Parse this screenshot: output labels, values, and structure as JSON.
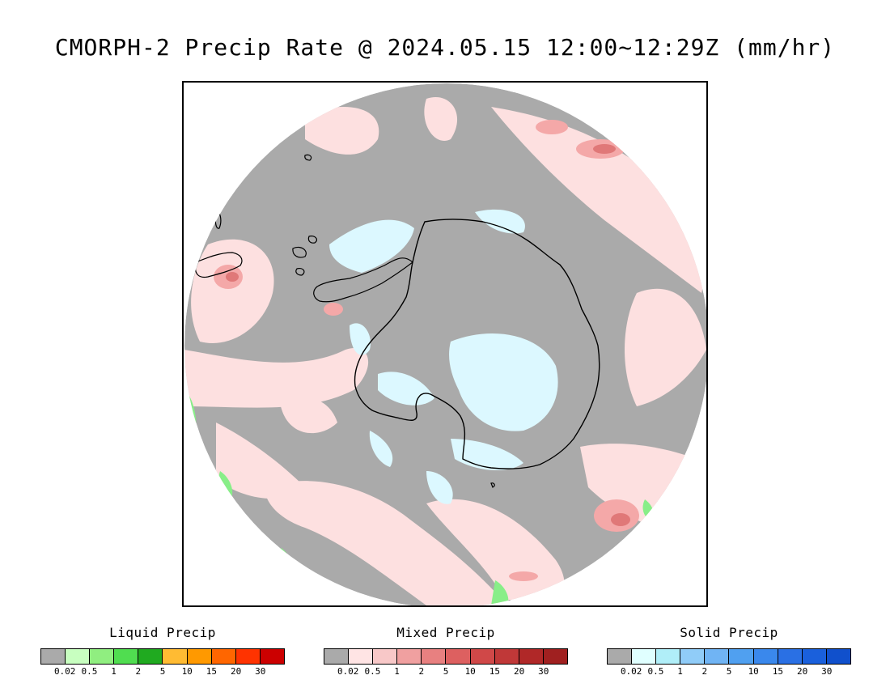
{
  "title": "CMORPH-2 Precip Rate @ 2024.05.15 12:00~12:29Z (mm/hr)",
  "map": {
    "projection": "south-polar-stereographic",
    "colors": {
      "background_circle": "#aaaaaa",
      "mixed_light": "#fde0e0",
      "mixed_mid": "#f4a8a8",
      "mixed_strong": "#e07878",
      "solid_light": "#dcf8ff",
      "liquid_light": "#88ee88",
      "coast": "#000000"
    }
  },
  "legends": [
    {
      "title": "Liquid Precip",
      "colors": [
        "#aaaaaa",
        "#c8ffc0",
        "#90ee80",
        "#50dd50",
        "#20aa20",
        "#ffbb33",
        "#ff9900",
        "#ff6600",
        "#ff3300",
        "#cc0000"
      ],
      "ticks": [
        "0.02",
        "0.5",
        "1",
        "2",
        "5",
        "10",
        "15",
        "20",
        "30"
      ]
    },
    {
      "title": "Mixed Precip",
      "colors": [
        "#aaaaaa",
        "#ffe4e4",
        "#f8c8c8",
        "#f0a0a0",
        "#e88080",
        "#dd6060",
        "#d04848",
        "#c03838",
        "#b02828",
        "#a02020"
      ],
      "ticks": [
        "0.02",
        "0.5",
        "1",
        "2",
        "5",
        "10",
        "15",
        "20",
        "30"
      ]
    },
    {
      "title": "Solid Precip",
      "colors": [
        "#aaaaaa",
        "#e0ffff",
        "#b0eef8",
        "#90ccf8",
        "#70b4f4",
        "#50a0f0",
        "#3a88ec",
        "#2a70e4",
        "#1a60dc",
        "#1050cc"
      ],
      "ticks": [
        "0.02",
        "0.5",
        "1",
        "2",
        "5",
        "10",
        "15",
        "20",
        "30"
      ]
    }
  ]
}
